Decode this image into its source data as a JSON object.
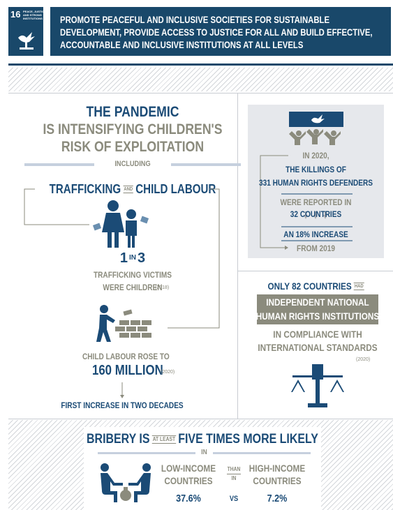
{
  "header": {
    "goal_number": "16",
    "goal_name": [
      "PEACE, JUSTICE",
      "AND STRONG",
      "INSTITUTIONS"
    ],
    "title": [
      "PROMOTE PEACEFUL AND INCLUSIVE SOCIETIES FOR SUSTAINABLE",
      "DEVELOPMENT, PROVIDE ACCESS TO JUSTICE FOR ALL AND BUILD EFFECTIVE,",
      "ACCOUNTABLE AND INCLUSIVE INSTITUTIONS AT ALL LEVELS"
    ]
  },
  "children": {
    "heading": [
      "THE PANDEMIC",
      "IS INTENSIFYING CHILDREN'S",
      "RISK OF EXPLOITATION"
    ],
    "including": "INCLUDING",
    "topics": [
      "TRAFFICKING",
      "AND",
      "CHILD LABOUR"
    ],
    "ratio": [
      "1",
      "IN",
      "3"
    ],
    "trafficking_text": [
      "TRAFFICKING VICTIMS",
      "WERE CHILDREN"
    ],
    "trafficking_year": "(2018)",
    "labour_text": "CHILD LABOUR ROSE TO",
    "labour_value": "160 MILLION",
    "labour_year": "(2020)",
    "labour_note": "FIRST INCREASE IN TWO DECADES"
  },
  "defenders": {
    "lines": [
      "IN 2020,",
      "THE KILLINGS OF",
      "331 HUMAN RIGHTS DEFENDERS",
      "WERE REPORTED IN",
      "32 COUNTRIES",
      "AN 18% INCREASE",
      "FROM 2019"
    ]
  },
  "institutions": {
    "lead": "ONLY 82 COUNTRIES",
    "had": "HAD",
    "highlight": [
      "INDEPENDENT NATIONAL",
      "HUMAN RIGHTS INSTITUTIONS"
    ],
    "rest": [
      "IN COMPLIANCE WITH",
      "INTERNATIONAL STANDARDS"
    ],
    "year": "(2020)"
  },
  "bribery": {
    "heading": [
      "BRIBERY IS",
      "AT LEAST",
      "FIVE TIMES MORE LIKELY"
    ],
    "in": "IN",
    "low": [
      "LOW-INCOME",
      "COUNTRIES"
    ],
    "than": [
      "THAN",
      "IN"
    ],
    "high": [
      "HIGH-INCOME",
      "COUNTRIES"
    ],
    "low_value": "37.6%",
    "vs": "VS",
    "high_value": "7.2%"
  }
}
